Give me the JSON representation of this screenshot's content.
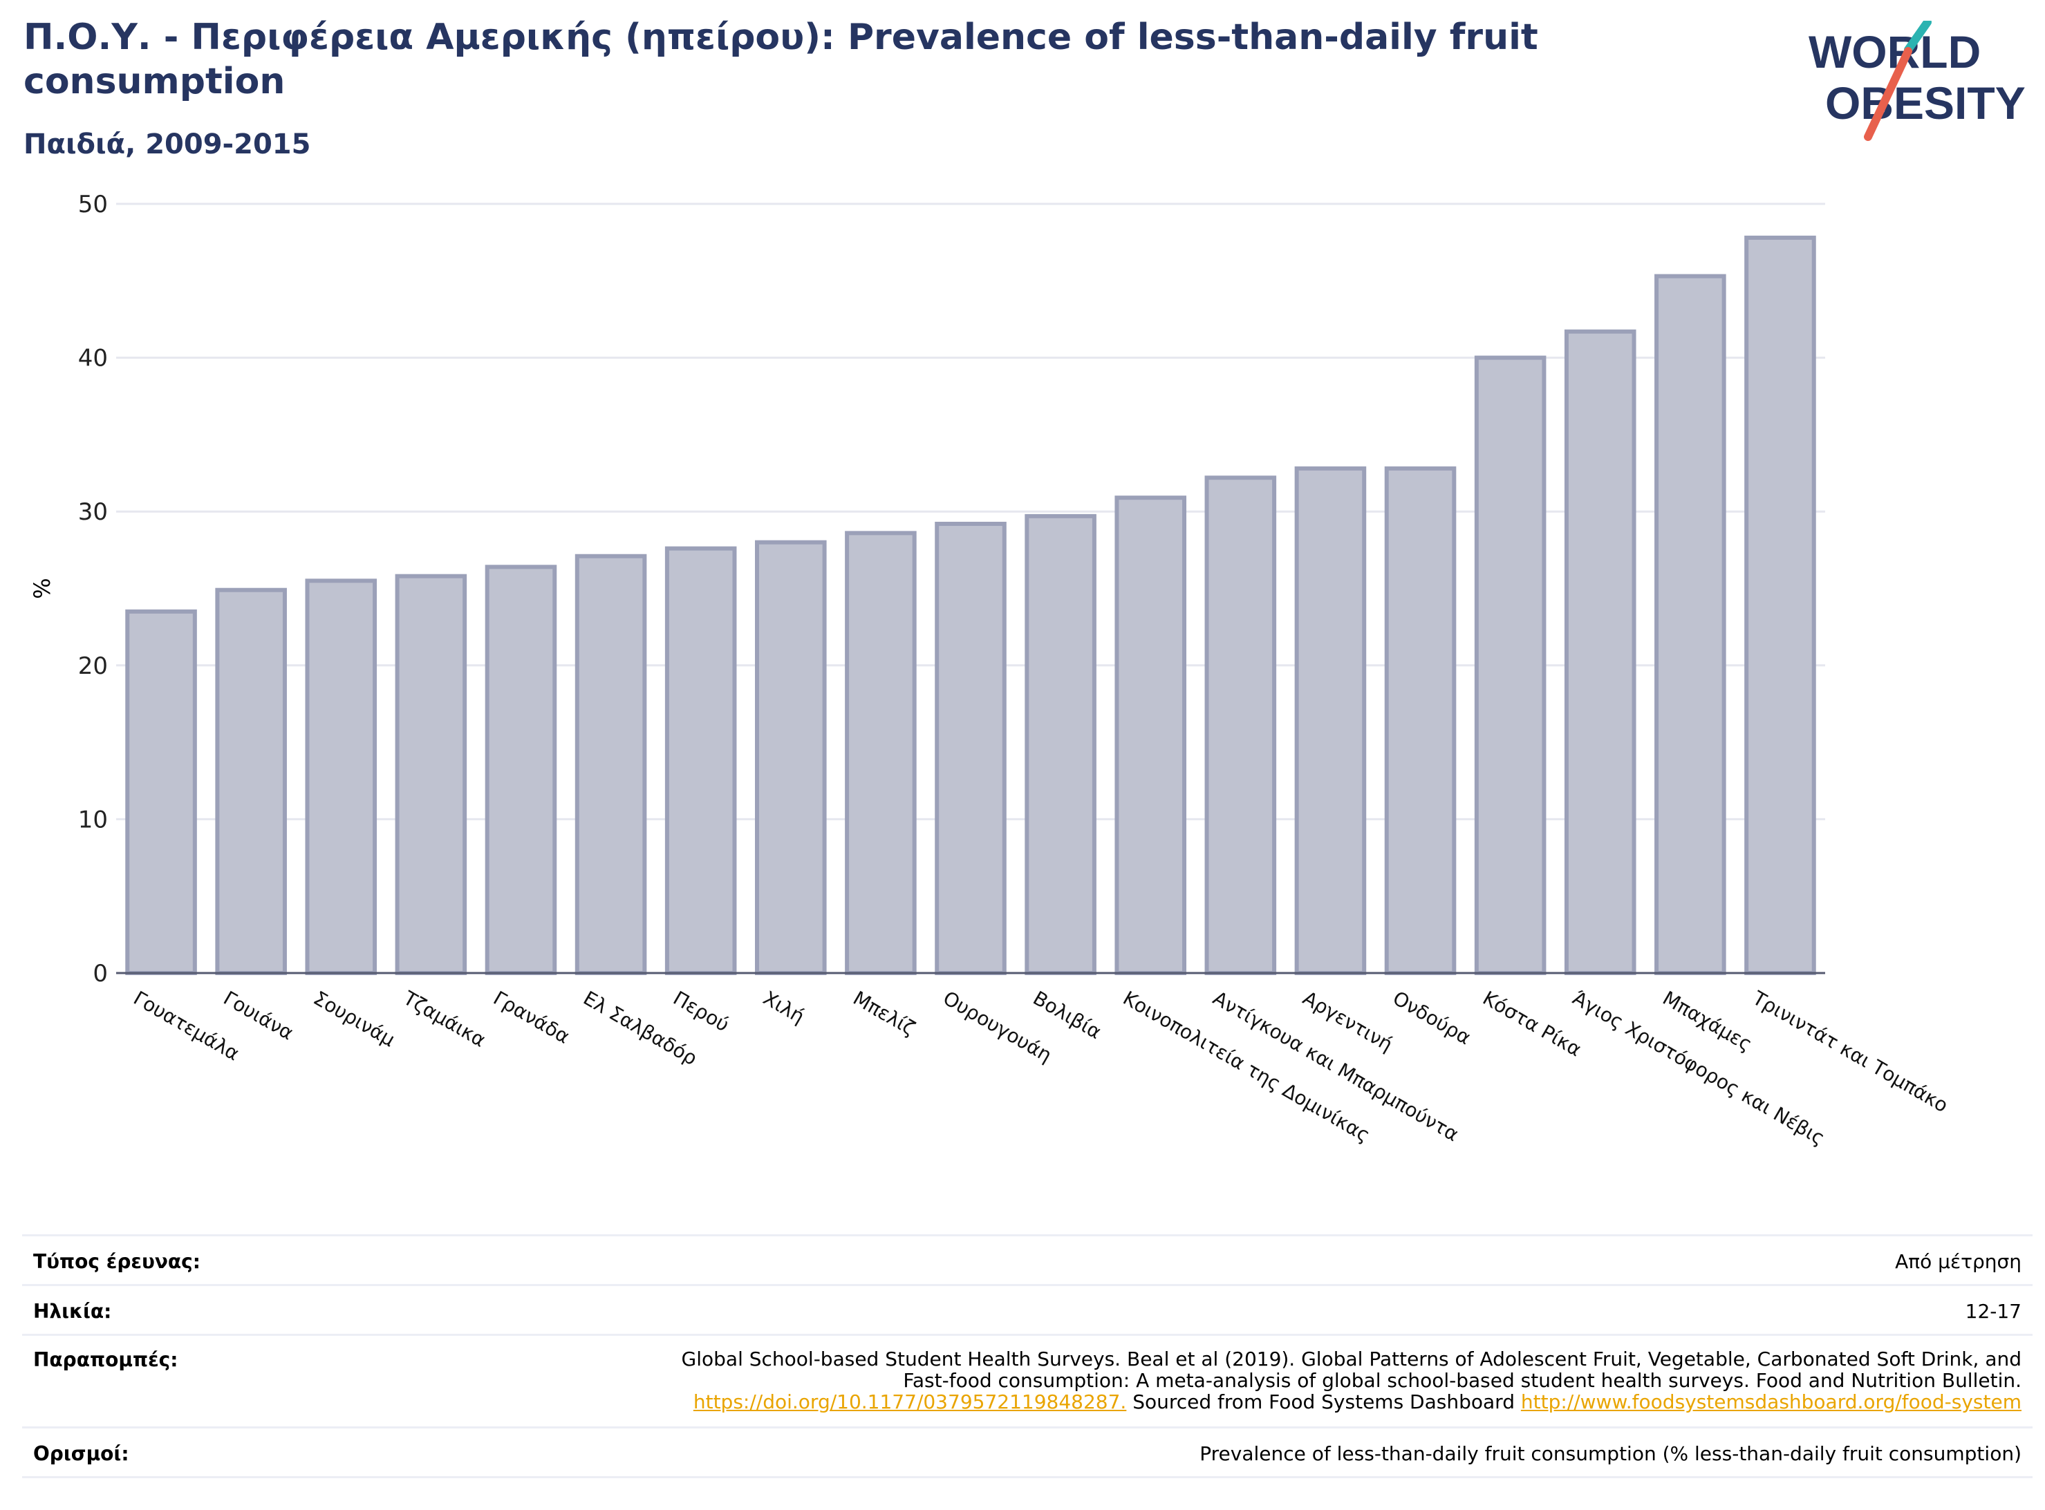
{
  "header": {
    "title": "Π.Ο.Υ. - Περιφέρεια Αμερικής (ηπείρου): Prevalence of less-than-daily fruit consumption",
    "subtitle": "Παιδιά, 2009-2015"
  },
  "logo": {
    "line1": "WORLD",
    "line2": "OBESITY"
  },
  "colors": {
    "title": "#263561",
    "bar_fill": "#bfc2d0",
    "bar_stroke": "#9ba0b8",
    "grid": "#e6e7ef",
    "axis": "#555a70",
    "link": "#e9a400",
    "logo_teal": "#2bb3b1",
    "logo_coral": "#e8604c"
  },
  "chart_data": {
    "type": "bar",
    "ylabel": "%",
    "ylim": [
      0,
      50
    ],
    "yticks": [
      0,
      10,
      20,
      30,
      40,
      50
    ],
    "grid": true,
    "categories": [
      "Γουατεμάλα",
      "Γουιάνα",
      "Σουρινάμ",
      "Τζαμάικα",
      "Γρανάδα",
      "Ελ Σαλβαδόρ",
      "Περού",
      "Χιλή",
      "Μπελίζ",
      "Ουρουγουάη",
      "Βολιβία",
      "Κοινοπολιτεία της Δομινίκας",
      "Αντίγκουα και Μπαρμπούντα",
      "Αργεντινή",
      "Ονδούρα",
      "Κόστα Ρίκα",
      "Άγιος Χριστόφορος και Νέβις",
      "Μπαχάμες",
      "Τρινιντάτ και Τομπάκο"
    ],
    "values": [
      23.5,
      24.9,
      25.5,
      25.8,
      26.4,
      27.1,
      27.6,
      28.0,
      28.6,
      29.2,
      29.7,
      30.9,
      32.2,
      32.8,
      32.8,
      40.0,
      41.7,
      45.3,
      47.8
    ]
  },
  "info": {
    "rows": [
      {
        "key": "Τύπος έρευνας:",
        "value": "Από μέτρηση"
      },
      {
        "key": "Ηλικία:",
        "value": "12-17"
      },
      {
        "key": "Παραπομπές:",
        "value": ""
      },
      {
        "key": "Ορισμοί:",
        "value": "Prevalence of less-than-daily fruit consumption (% less-than-daily fruit consumption)"
      }
    ],
    "references": {
      "text1": "Global School-based Student Health Surveys. Beal et al (2019). Global Patterns of Adolescent Fruit, Vegetable, Carbonated Soft Drink, and",
      "text2": "Fast-food consumption: A meta-analysis of global school-based student health surveys. Food and Nutrition Bulletin.",
      "link1": "https://doi.org/10.1177/0379572119848287.",
      "text3": " Sourced from Food Systems Dashboard ",
      "link2": "http://www.foodsystemsdashboard.org/food-system"
    }
  }
}
